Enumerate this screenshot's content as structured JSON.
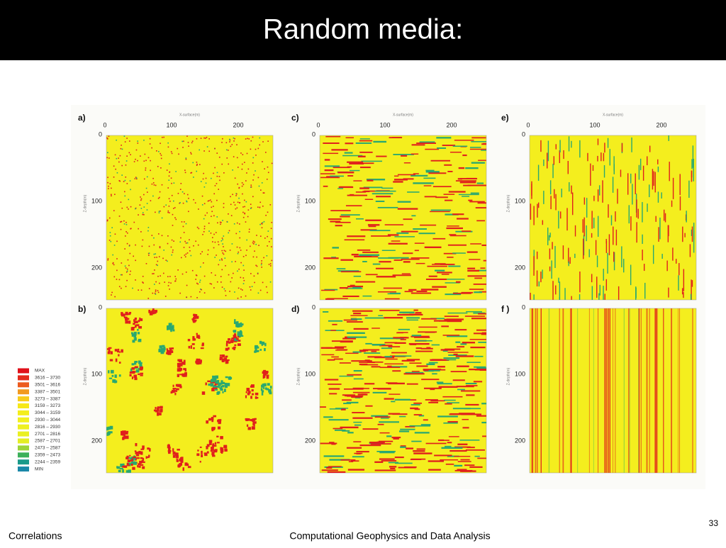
{
  "header": {
    "title": "Random media:"
  },
  "figure": {
    "panels": [
      {
        "label": "a)",
        "x_label": "X-surface(m)",
        "x_ticks": [
          "0",
          "100",
          "200"
        ],
        "y_label": "Z-depth(m)",
        "y_ticks": [
          "0",
          "100",
          "200"
        ]
      },
      {
        "label": "b)",
        "y_label": "Z-depth(m)",
        "y_ticks": [
          "0",
          "100",
          "200"
        ]
      },
      {
        "label": "c)",
        "x_label": "X-surface(m)",
        "x_ticks": [
          "0",
          "100",
          "200"
        ],
        "y_label": "Z-depth(m)",
        "y_ticks": [
          "0",
          "100",
          "200"
        ]
      },
      {
        "label": "d)",
        "y_label": "Z-depth(m)",
        "y_ticks": [
          "0",
          "100",
          "200"
        ]
      },
      {
        "label": "e)",
        "x_label": "X-surface(m)",
        "x_ticks": [
          "0",
          "100",
          "200"
        ],
        "y_label": "Z-depth(m)",
        "y_ticks": [
          "0",
          "100",
          "200"
        ]
      },
      {
        "label": "f )",
        "y_label": "Z-depth(m)",
        "y_ticks": [
          "0",
          "100",
          "200"
        ]
      }
    ],
    "legend": [
      {
        "label": "MAX",
        "color": "#e0101a"
      },
      {
        "label": "3616 – 3730",
        "color": "#e42a1c"
      },
      {
        "label": "3501 – 3616",
        "color": "#ec5a1e"
      },
      {
        "label": "3387 – 3501",
        "color": "#f29a20"
      },
      {
        "label": "3273 – 3387",
        "color": "#f8cc1c"
      },
      {
        "label": "3159 – 3273",
        "color": "#f6e81a"
      },
      {
        "label": "3044 – 3159",
        "color": "#f4ee1c"
      },
      {
        "label": "2930 – 3044",
        "color": "#f2f01e"
      },
      {
        "label": "2816 – 2930",
        "color": "#eef020"
      },
      {
        "label": "2701 – 2816",
        "color": "#eaf022"
      },
      {
        "label": "2587 – 2701",
        "color": "#e4ee24"
      },
      {
        "label": "2473 – 2587",
        "color": "#9cd43a"
      },
      {
        "label": "2359 – 2473",
        "color": "#3cb05a"
      },
      {
        "label": "2244 – 2359",
        "color": "#1a9a8a"
      },
      {
        "label": "MIN",
        "color": "#1a88a8"
      }
    ]
  },
  "footer": {
    "left": "Correlations",
    "center": "Computational Geophysics and Data Analysis",
    "page": "33"
  }
}
